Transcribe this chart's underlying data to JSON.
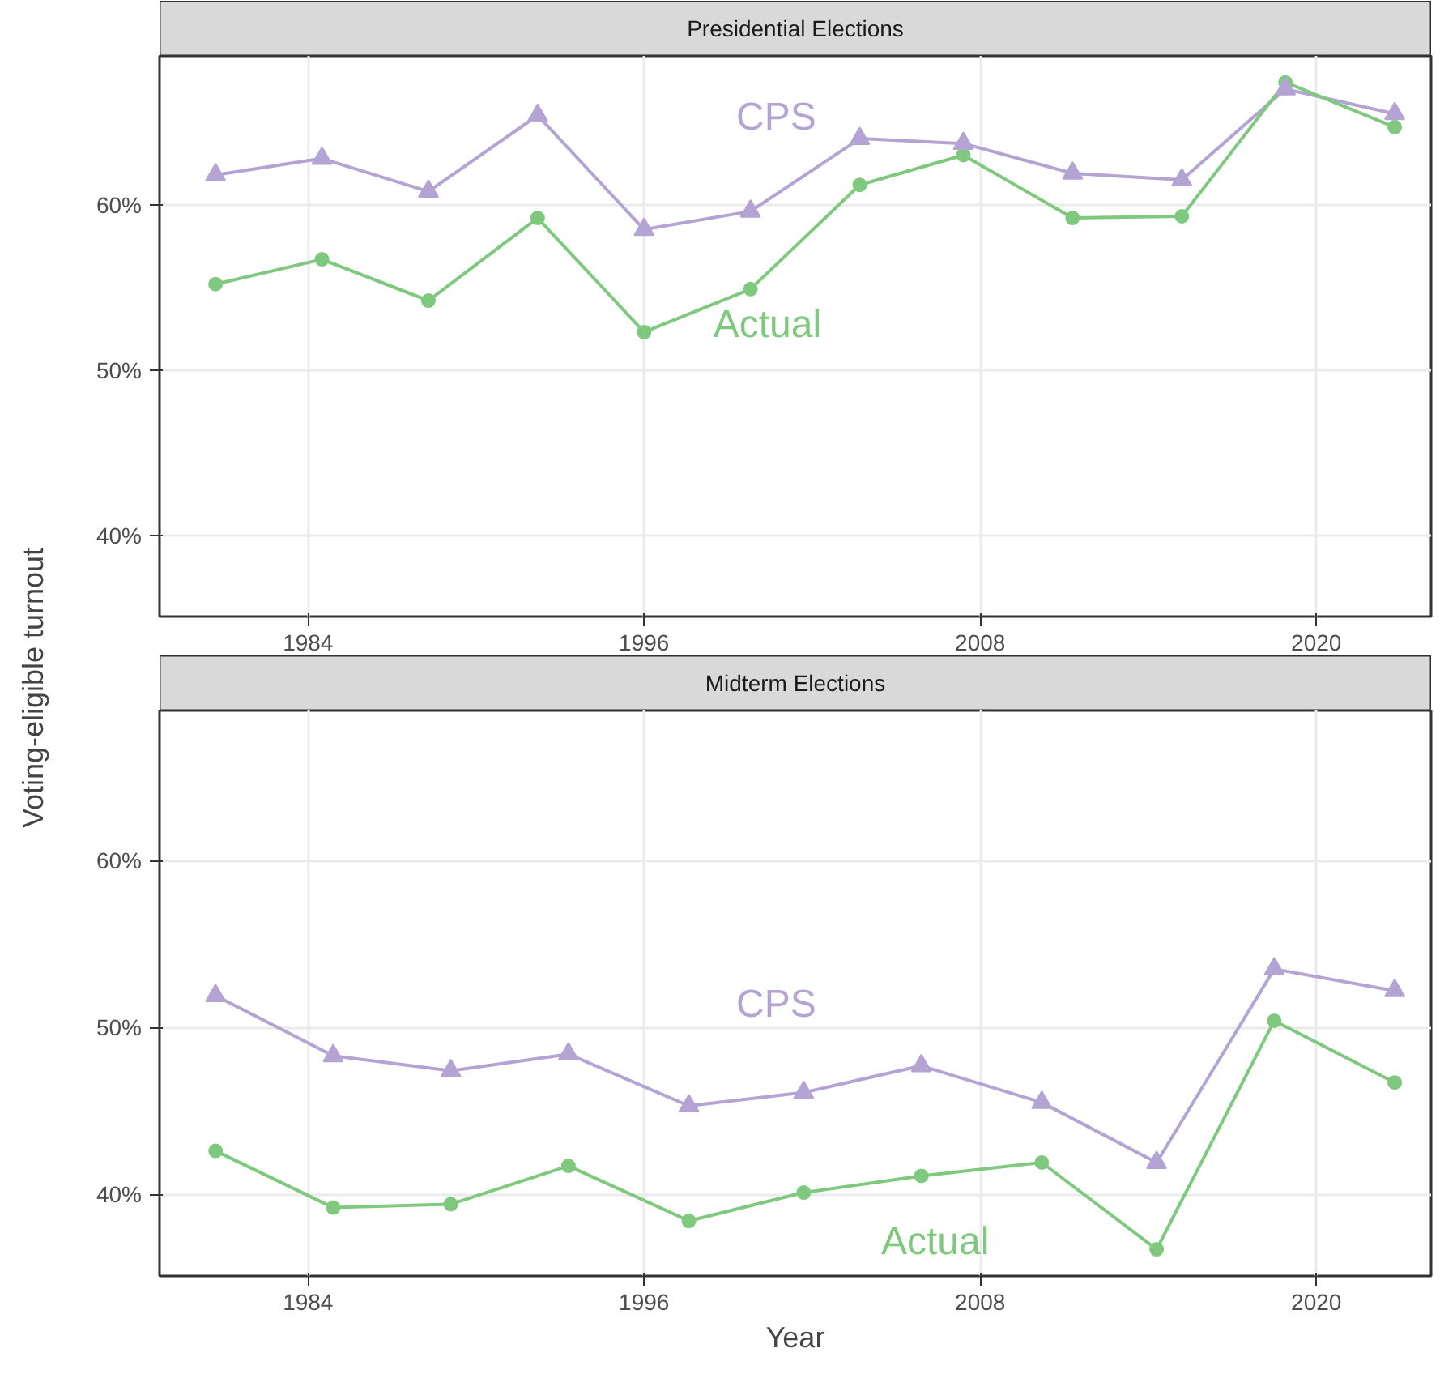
{
  "chart_data": [
    {
      "type": "line",
      "title": "Presidential Elections",
      "ylabel": "Voting-eligible turnout",
      "x": [
        1980.7,
        1984.5,
        1988.3,
        1992.2,
        1996.0,
        1999.8,
        2003.7,
        2007.4,
        2011.3,
        2015.2,
        2018.9,
        2022.8
      ],
      "series": [
        {
          "name": "CPS",
          "color": "#b3a4d4",
          "marker": "triangle",
          "values": [
            61.8,
            62.8,
            60.8,
            65.4,
            58.5,
            59.6,
            64.0,
            63.7,
            61.9,
            61.5,
            67.0,
            65.5
          ]
        },
        {
          "name": "Actual",
          "color": "#7fc97f",
          "marker": "circle",
          "values": [
            55.2,
            56.7,
            54.2,
            59.2,
            52.3,
            54.9,
            61.2,
            63.0,
            59.2,
            59.3,
            67.4,
            64.7
          ]
        }
      ],
      "xlim": [
        1978.7,
        2024.1
      ],
      "xticks": [
        1984,
        1996,
        2008,
        2020
      ],
      "ylim": [
        35.1,
        69.0
      ],
      "yticks": [
        {
          "value": 40,
          "label": "40%"
        },
        {
          "value": 50,
          "label": "50%"
        },
        {
          "value": 60,
          "label": "60%"
        }
      ],
      "grid": true,
      "line_style": "solid"
    },
    {
      "type": "line",
      "title": "Midterm Elections",
      "xlabel": "Year",
      "x": [
        1980.7,
        1984.9,
        1989.1,
        1993.3,
        1997.6,
        2001.7,
        2005.9,
        2010.2,
        2014.3,
        2018.5,
        2022.8
      ],
      "series": [
        {
          "name": "CPS",
          "color": "#b3a4d4",
          "marker": "triangle",
          "values": [
            51.9,
            48.3,
            47.4,
            48.4,
            45.3,
            46.1,
            47.7,
            45.5,
            41.9,
            53.5,
            52.2
          ]
        },
        {
          "name": "Actual",
          "color": "#7fc97f",
          "marker": "circle",
          "values": [
            42.6,
            39.2,
            39.4,
            41.7,
            38.4,
            40.1,
            41.1,
            41.9,
            36.7,
            50.4,
            46.7
          ]
        }
      ],
      "xlim": [
        1978.7,
        2024.1
      ],
      "xticks": [
        1984,
        1996,
        2008,
        2020
      ],
      "ylim": [
        35.1,
        69.0
      ],
      "yticks": [
        {
          "value": 40,
          "label": "40%"
        },
        {
          "value": 50,
          "label": "50%"
        },
        {
          "value": 60,
          "label": "60%"
        }
      ],
      "grid": true,
      "line_style": "solid"
    }
  ]
}
